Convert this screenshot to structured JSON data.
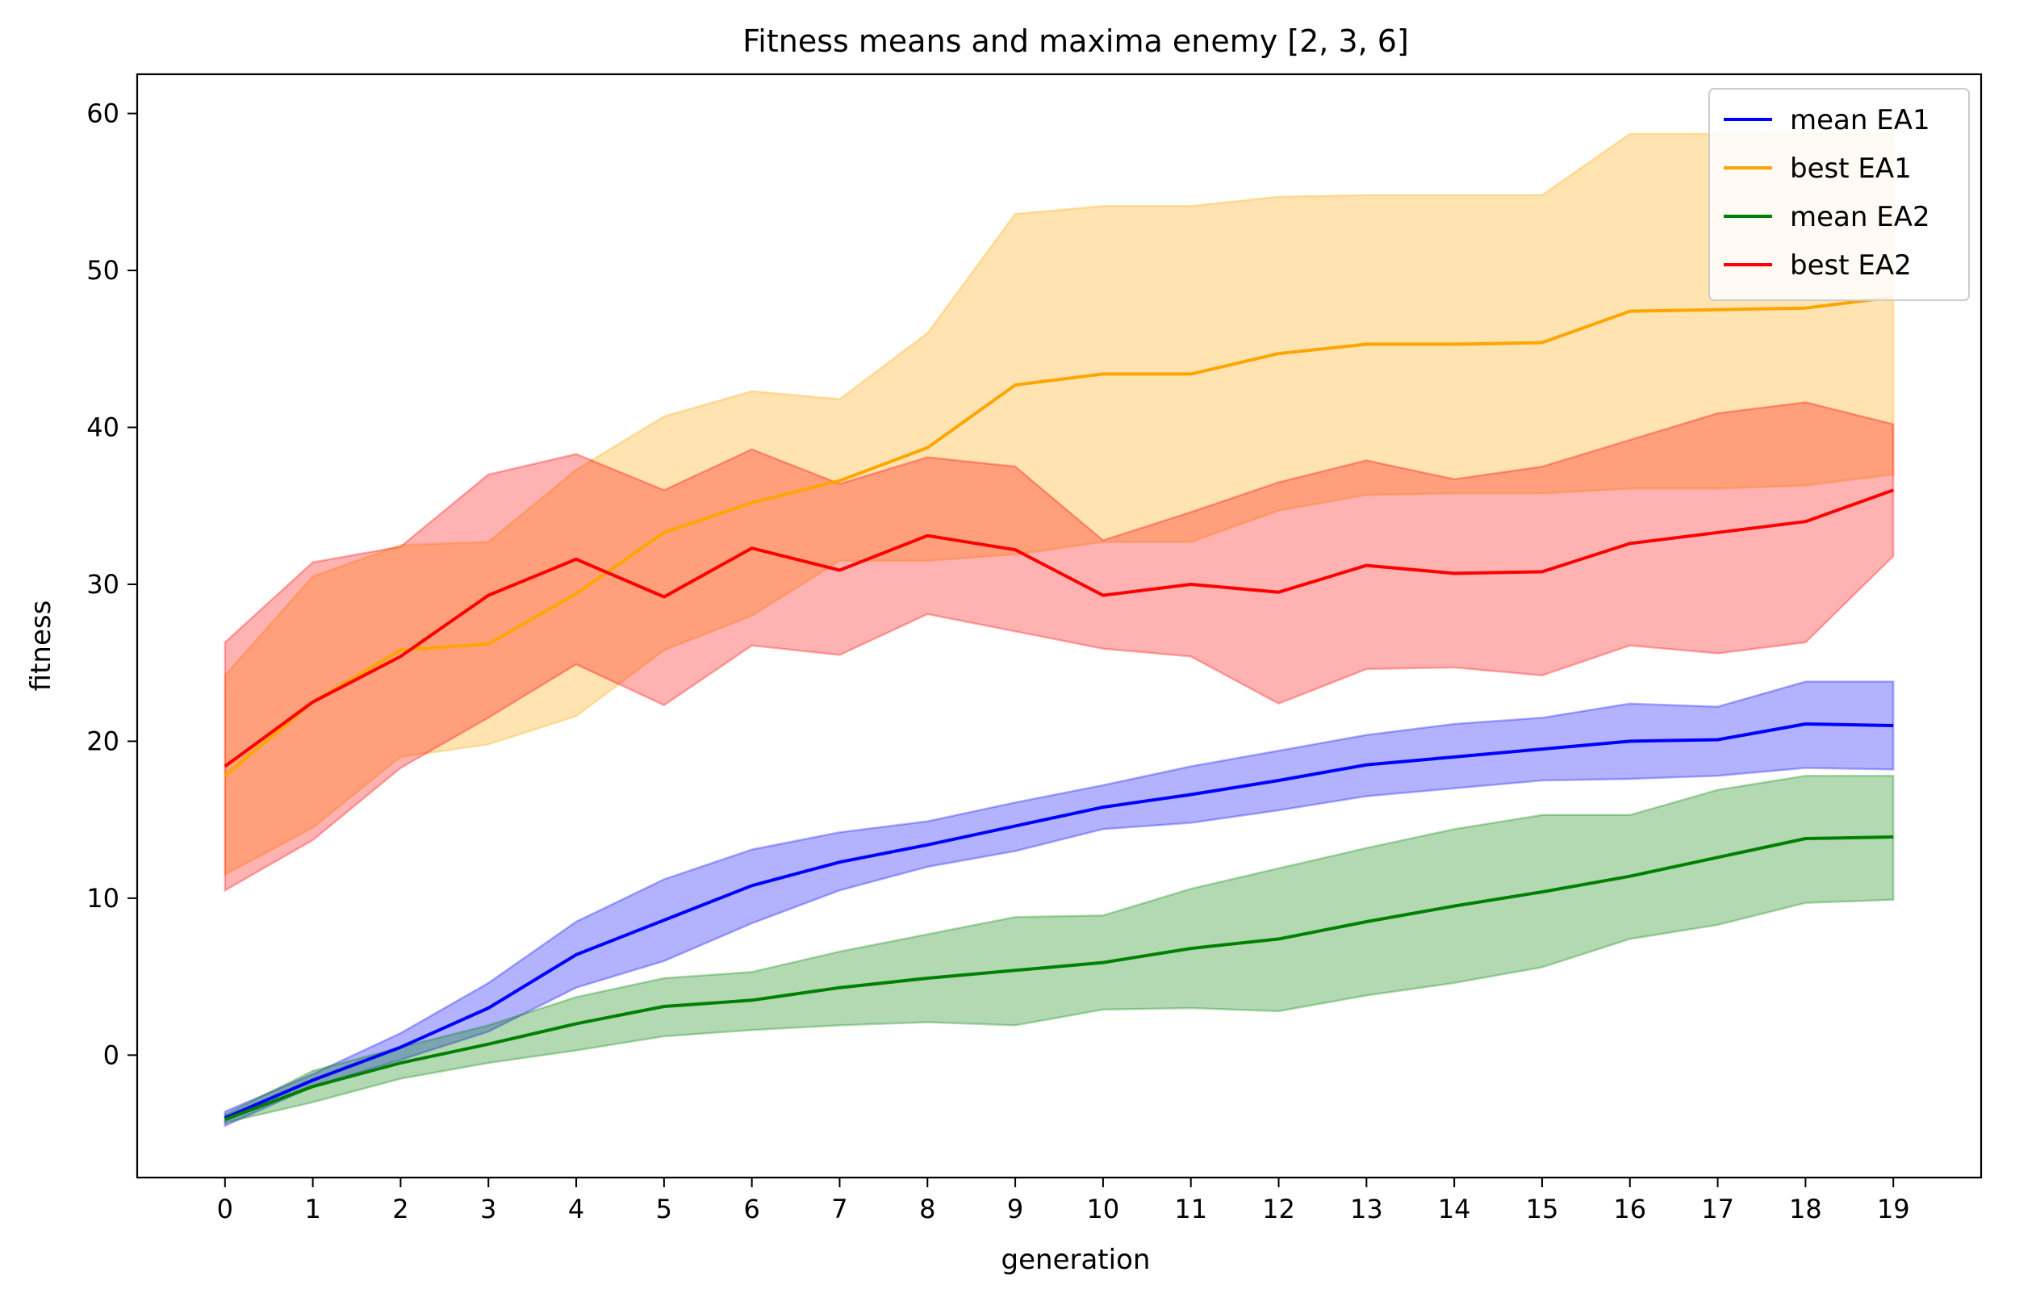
{
  "chart_data": {
    "type": "line",
    "title": "Fitness means and maxima enemy [2, 3, 6]",
    "xlabel": "generation",
    "ylabel": "fitness",
    "xlim": [
      -1.0,
      20.0
    ],
    "ylim": [
      -7.8,
      62.5
    ],
    "x": [
      0,
      1,
      2,
      3,
      4,
      5,
      6,
      7,
      8,
      9,
      10,
      11,
      12,
      13,
      14,
      15,
      16,
      17,
      18,
      19
    ],
    "xticks": [
      0,
      1,
      2,
      3,
      4,
      5,
      6,
      7,
      8,
      9,
      10,
      11,
      12,
      13,
      14,
      15,
      16,
      17,
      18,
      19
    ],
    "yticks": [
      0,
      10,
      20,
      30,
      40,
      50,
      60
    ],
    "grid": false,
    "legend_position": "top-right",
    "series": [
      {
        "name": "mean EA1",
        "color": "#0000ff",
        "band_color": "#0000ff",
        "values": [
          -4.0,
          -1.6,
          0.5,
          3.0,
          6.4,
          8.6,
          10.8,
          12.3,
          13.4,
          14.6,
          15.8,
          16.6,
          17.5,
          18.5,
          19.0,
          19.5,
          20.0,
          20.1,
          21.1,
          21.0
        ],
        "lower": [
          -4.5,
          -2.0,
          -0.3,
          1.5,
          4.3,
          6.0,
          8.4,
          10.5,
          12.0,
          13.0,
          14.4,
          14.8,
          15.6,
          16.5,
          17.0,
          17.5,
          17.6,
          17.8,
          18.3,
          18.2
        ],
        "upper": [
          -3.6,
          -1.2,
          1.4,
          4.6,
          8.5,
          11.2,
          13.1,
          14.2,
          14.9,
          16.1,
          17.2,
          18.4,
          19.4,
          20.4,
          21.1,
          21.5,
          22.4,
          22.2,
          23.8,
          23.8
        ]
      },
      {
        "name": "best EA1",
        "color": "#ffa500",
        "band_color": "#ffa500",
        "values": [
          17.8,
          22.5,
          25.8,
          26.2,
          29.4,
          33.3,
          35.2,
          36.6,
          38.7,
          42.7,
          43.4,
          43.4,
          44.7,
          45.3,
          45.3,
          45.4,
          47.4,
          47.5,
          47.6,
          48.3
        ],
        "lower": [
          11.5,
          14.5,
          19.0,
          19.8,
          21.6,
          25.8,
          28.0,
          31.5,
          31.5,
          31.9,
          32.7,
          32.7,
          34.7,
          35.7,
          35.8,
          35.8,
          36.1,
          36.1,
          36.3,
          37.0
        ],
        "upper": [
          24.2,
          30.5,
          32.5,
          32.7,
          37.3,
          40.7,
          42.3,
          41.8,
          46.0,
          53.6,
          54.1,
          54.1,
          54.7,
          54.8,
          54.8,
          54.8,
          58.7,
          58.7,
          58.7,
          58.7
        ]
      },
      {
        "name": "mean EA2",
        "color": "#008000",
        "band_color": "#008000",
        "values": [
          -4.1,
          -2.0,
          -0.5,
          0.7,
          2.0,
          3.1,
          3.5,
          4.3,
          4.9,
          5.4,
          5.9,
          6.8,
          7.4,
          8.5,
          9.5,
          10.4,
          11.4,
          12.6,
          13.8,
          13.9
        ],
        "lower": [
          -4.3,
          -3.0,
          -1.5,
          -0.5,
          0.3,
          1.2,
          1.6,
          1.9,
          2.1,
          1.9,
          2.9,
          3.0,
          2.8,
          3.8,
          4.6,
          5.6,
          7.4,
          8.3,
          9.7,
          9.9
        ],
        "upper": [
          -3.8,
          -1.0,
          0.5,
          1.9,
          3.7,
          4.9,
          5.3,
          6.6,
          7.7,
          8.8,
          8.9,
          10.6,
          11.9,
          13.2,
          14.4,
          15.3,
          15.3,
          16.9,
          17.8,
          17.8
        ]
      },
      {
        "name": "best EA2",
        "color": "#ff0000",
        "band_color": "#ff0000",
        "values": [
          18.4,
          22.5,
          25.4,
          29.3,
          31.6,
          29.2,
          32.3,
          30.9,
          33.1,
          32.2,
          29.3,
          30.0,
          29.5,
          31.2,
          30.7,
          30.8,
          32.6,
          33.3,
          34.0,
          36.0
        ],
        "lower": [
          10.5,
          13.7,
          18.3,
          21.5,
          24.9,
          22.3,
          26.1,
          25.5,
          28.1,
          27.0,
          25.9,
          25.4,
          22.4,
          24.6,
          24.7,
          24.2,
          26.1,
          25.6,
          26.3,
          31.8
        ],
        "upper": [
          26.3,
          31.4,
          32.4,
          37.0,
          38.3,
          36.0,
          38.6,
          36.4,
          38.1,
          37.5,
          32.8,
          34.6,
          36.5,
          37.9,
          36.7,
          37.5,
          39.2,
          40.9,
          41.6,
          40.2
        ]
      }
    ]
  }
}
